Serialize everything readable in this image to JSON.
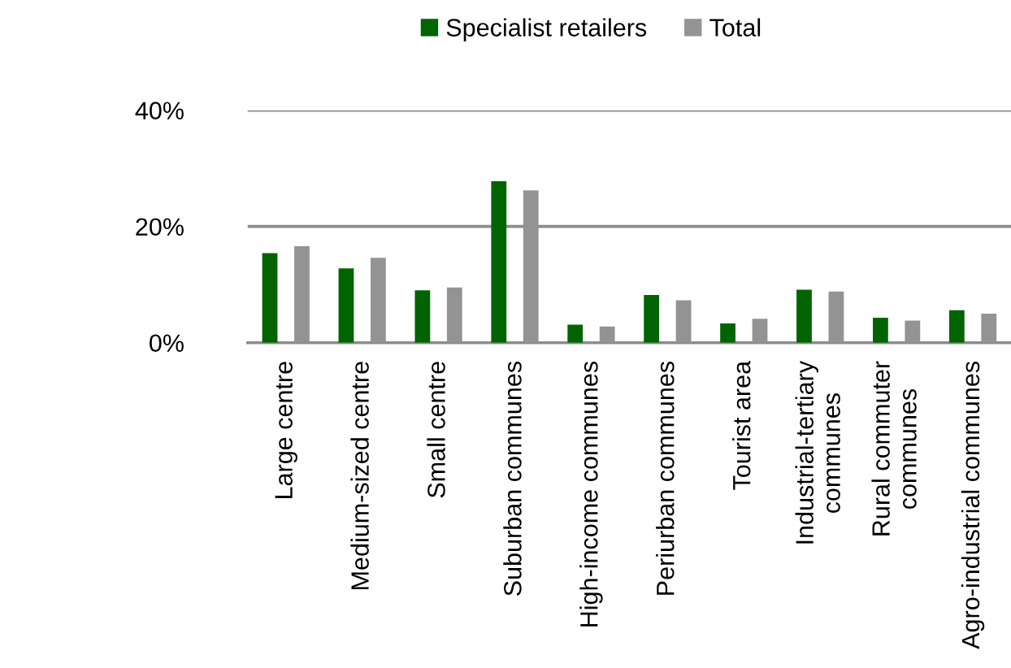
{
  "chart_data": {
    "type": "bar",
    "categories": [
      "Large centre",
      "Medium-sized centre",
      "Small centre",
      "Suburban communes",
      "High-income communes",
      "Periurban communes",
      "Tourist area",
      "Industrial-tertiary\ncommunes",
      "Rural commuter\ncommunes",
      "Agro-industrial communes"
    ],
    "series": [
      {
        "name": "Specialist retailers",
        "color": "#006400",
        "values": [
          15.4,
          12.8,
          9.0,
          27.8,
          3.1,
          8.2,
          3.3,
          9.1,
          4.3,
          5.6
        ]
      },
      {
        "name": "Total",
        "color": "#939393",
        "values": [
          16.6,
          14.6,
          9.5,
          26.2,
          2.8,
          7.3,
          4.1,
          8.8,
          3.8,
          5.0
        ]
      }
    ],
    "ylim": [
      0,
      40
    ],
    "yticks": [
      {
        "value": 0,
        "label": "0%"
      },
      {
        "value": 20,
        "label": "20%"
      },
      {
        "value": 40,
        "label": "40%"
      }
    ],
    "grid": "y",
    "legend": "top"
  }
}
